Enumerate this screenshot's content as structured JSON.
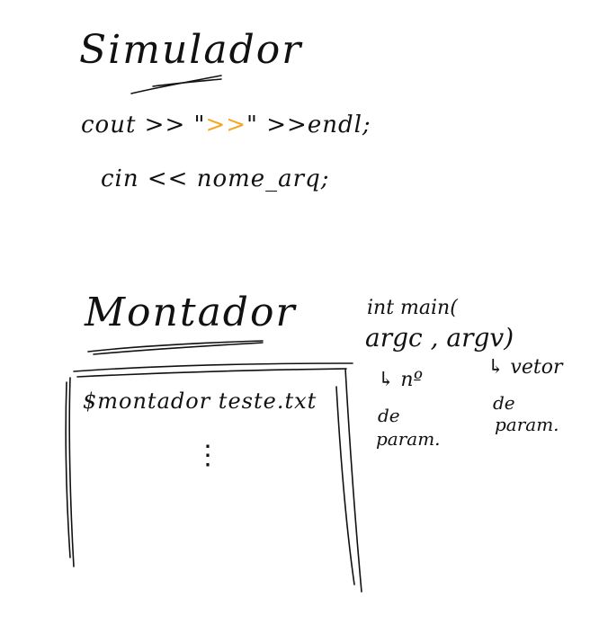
{
  "simulador": {
    "title": "Simulador",
    "line1_prefix": "cout >> \"",
    "line1_accent": ">>",
    "line1_suffix": "\" >>endl;",
    "line2": "cin << nome_arq;"
  },
  "montador": {
    "title": "Montador",
    "terminal_command": "$montador teste.txt",
    "terminal_ellipsis": "⋮"
  },
  "notes": {
    "main_sig_line1": "int main(",
    "main_sig_line2": "argc , argv)",
    "argc_desc_1": "↳ nº",
    "argc_desc_2": "de",
    "argc_desc_3": "param.",
    "argv_desc_1": "↳ vetor",
    "argv_desc_2": "de",
    "argv_desc_3": "param."
  },
  "colors": {
    "ink": "#111111",
    "accent": "#f5a623",
    "background": "#ffffff"
  }
}
